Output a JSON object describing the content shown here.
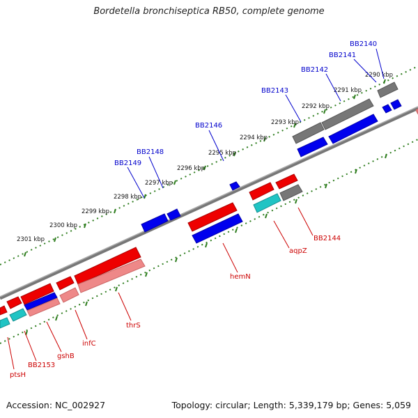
{
  "title": "Bordetella bronchiseptica RB50, complete genome",
  "footer": {
    "accession": "Accession: NC_002927",
    "summary": "Topology: circular; Length: 5,339,179 bp; Genes: 5,059"
  },
  "colors": {
    "backbone": "#8a8a8a",
    "tick": "#2e7d1e",
    "gene_red": "#ee0000",
    "gene_blue": "#0000ee",
    "gene_gray": "#777777",
    "gene_cyan": "#20c4c4",
    "gene_pink": "#ee8888",
    "label_blue": "#0000cc",
    "label_red": "#cc0000"
  },
  "kbp_labels": [
    "2290 kbp",
    "2291 kbp",
    "2292 kbp",
    "2293 kbp",
    "2294 kbp",
    "2295 kbp",
    "2296 kbp",
    "2297 kbp",
    "2298 kbp",
    "2299 kbp",
    "2300 kbp",
    "2301 kbp"
  ],
  "gene_labels_top": [
    "BB2140",
    "BB2141",
    "BB2142",
    "BB2143",
    "BB2146",
    "BB2148",
    "BB2149"
  ],
  "gene_labels_bottom": [
    "BB2144",
    "aqpZ",
    "hemN",
    "thrS",
    "infC",
    "gshB",
    "BB2153",
    "ptsH"
  ]
}
